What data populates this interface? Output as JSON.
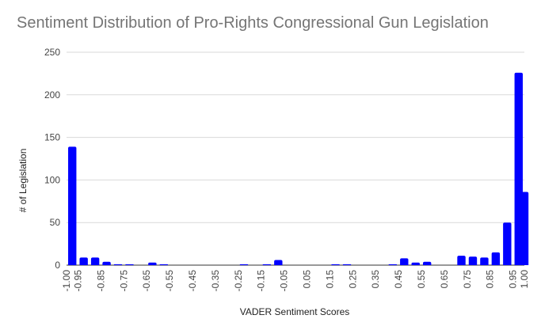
{
  "chart_data": {
    "type": "bar",
    "title": "Sentiment Distribution of Pro-Rights Congressional Gun Legislation",
    "xlabel": "VADER Sentiment Scores",
    "ylabel": "# of Legislation",
    "xlim": [
      -1.0,
      1.0
    ],
    "ylim": [
      0,
      250
    ],
    "yticks": [
      0,
      50,
      100,
      150,
      200,
      250
    ],
    "xtick_labels": [
      "-1.00",
      "-0.95",
      "-0.85",
      "-0.75",
      "-0.65",
      "-0.55",
      "-0.45",
      "-0.35",
      "-0.25",
      "-0.15",
      "-0.05",
      "0.05",
      "0.15",
      "0.25",
      "0.35",
      "0.45",
      "0.55",
      "0.65",
      "0.75",
      "0.85",
      "0.95",
      "1.00"
    ],
    "bin_width": 0.05,
    "bar_color": "#0000ff",
    "grid": true,
    "bins": [
      {
        "x": -0.975,
        "value": 139
      },
      {
        "x": -0.925,
        "value": 9
      },
      {
        "x": -0.875,
        "value": 9
      },
      {
        "x": -0.825,
        "value": 4
      },
      {
        "x": -0.775,
        "value": 1
      },
      {
        "x": -0.725,
        "value": 1
      },
      {
        "x": -0.675,
        "value": 0
      },
      {
        "x": -0.625,
        "value": 3
      },
      {
        "x": -0.575,
        "value": 1
      },
      {
        "x": -0.525,
        "value": 0
      },
      {
        "x": -0.475,
        "value": 0
      },
      {
        "x": -0.425,
        "value": 0
      },
      {
        "x": -0.375,
        "value": 0
      },
      {
        "x": -0.325,
        "value": 0
      },
      {
        "x": -0.275,
        "value": 0
      },
      {
        "x": -0.225,
        "value": 1
      },
      {
        "x": -0.175,
        "value": 0
      },
      {
        "x": -0.125,
        "value": 1
      },
      {
        "x": -0.075,
        "value": 6
      },
      {
        "x": -0.025,
        "value": 0
      },
      {
        "x": 0.025,
        "value": 0
      },
      {
        "x": 0.075,
        "value": 0
      },
      {
        "x": 0.125,
        "value": 0
      },
      {
        "x": 0.175,
        "value": 1
      },
      {
        "x": 0.225,
        "value": 1
      },
      {
        "x": 0.275,
        "value": 0
      },
      {
        "x": 0.325,
        "value": 0
      },
      {
        "x": 0.375,
        "value": 0
      },
      {
        "x": 0.425,
        "value": 1
      },
      {
        "x": 0.475,
        "value": 8
      },
      {
        "x": 0.525,
        "value": 3
      },
      {
        "x": 0.575,
        "value": 4
      },
      {
        "x": 0.625,
        "value": 0
      },
      {
        "x": 0.675,
        "value": 0
      },
      {
        "x": 0.725,
        "value": 11
      },
      {
        "x": 0.775,
        "value": 10
      },
      {
        "x": 0.825,
        "value": 9
      },
      {
        "x": 0.875,
        "value": 15
      },
      {
        "x": 0.925,
        "value": 50
      },
      {
        "x": 0.975,
        "value": 226
      },
      {
        "x": 1.0,
        "value": 86
      }
    ]
  }
}
